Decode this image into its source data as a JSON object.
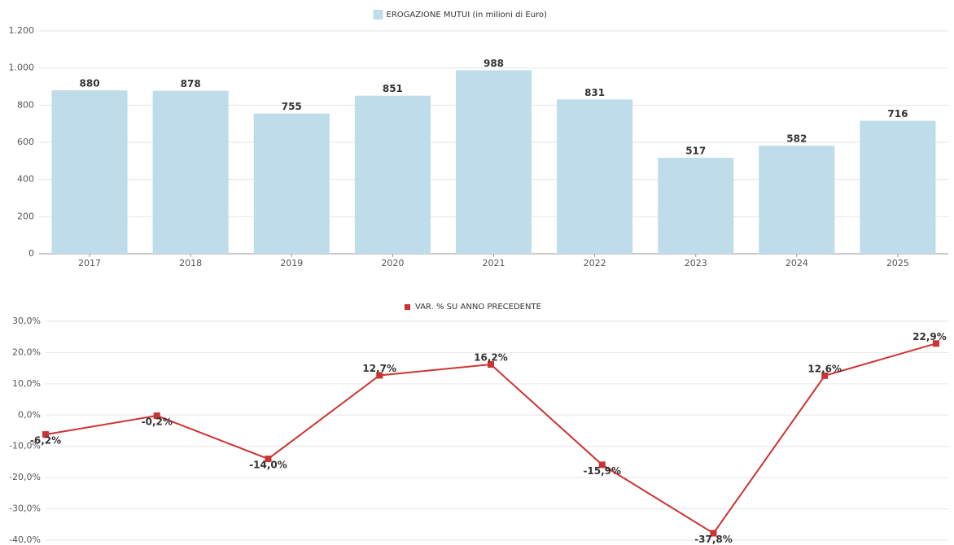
{
  "chart_data": [
    {
      "type": "bar",
      "series": [
        {
          "name": "EROGAZIONE MUTUI (in milioni di Euro)",
          "color": "#bfdcea",
          "values": [
            880,
            878,
            755,
            851,
            988,
            831,
            517,
            582,
            716
          ]
        }
      ],
      "categories": [
        "2017",
        "2018",
        "2019",
        "2020",
        "2021",
        "2022",
        "2023",
        "2024",
        "2025"
      ],
      "ylim": [
        0,
        1200
      ],
      "yticks": [
        0,
        200,
        400,
        600,
        800,
        {
          "value": 1000,
          "label": "1.000"
        },
        {
          "value": 1200,
          "label": "1.200"
        }
      ],
      "grid": true
    },
    {
      "type": "line",
      "series": [
        {
          "name": "VAR. % SU ANNO PRECEDENTE",
          "color": "#cc3333",
          "values": [
            -6.2,
            -0.2,
            -14.0,
            12.7,
            16.2,
            -15.9,
            -37.8,
            12.6,
            22.9
          ],
          "value_labels": [
            "-6,2%",
            "-0,2%",
            "-14,0%",
            "12,7%",
            "16,2%",
            "-15,9%",
            "-37,8%",
            "12,6%",
            "22,9%"
          ]
        }
      ],
      "ylim": [
        -40,
        30
      ],
      "yticks": [
        {
          "value": 30,
          "label": "30,0%"
        },
        {
          "value": 20,
          "label": "20,0%"
        },
        {
          "value": 10,
          "label": "10,0%"
        },
        {
          "value": 0,
          "label": "0,0%"
        },
        {
          "value": -10,
          "label": "-10,0%"
        },
        {
          "value": -20,
          "label": "-20,0%"
        },
        {
          "value": -30,
          "label": "-30,0%"
        },
        {
          "value": -40,
          "label": "-40,0%"
        }
      ],
      "grid": true
    }
  ]
}
